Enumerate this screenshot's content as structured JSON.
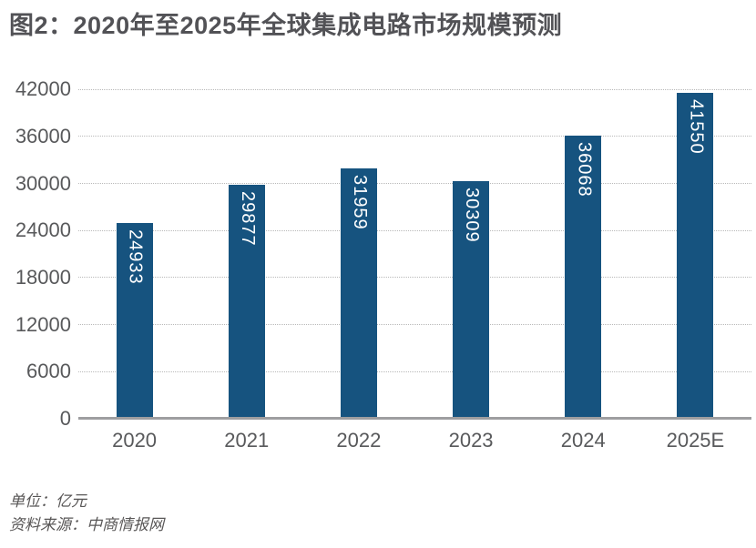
{
  "title": "图2：2020年至2025年全球集成电路市场规模预测",
  "chart_data": {
    "type": "bar",
    "title": "图2：2020年至2025年全球集成电路市场规模预测",
    "categories": [
      "2020",
      "2021",
      "2022",
      "2023",
      "2024",
      "2025E"
    ],
    "values": [
      24933,
      29877,
      31959,
      30309,
      36068,
      41550
    ],
    "xlabel": "",
    "ylabel": "",
    "ylim": [
      0,
      42000
    ],
    "yticks": [
      0,
      6000,
      12000,
      18000,
      24000,
      30000,
      36000,
      42000
    ],
    "grid": "horizontal-dotted",
    "legend": "none",
    "bar_color": "#16537F",
    "value_label_color": "#FFFFFF",
    "value_label_orientation": "vertical"
  },
  "footer": {
    "unit": "单位：亿元",
    "source": "资料来源：中商情报网"
  },
  "colors": {
    "title_text": "#525256",
    "axis_text": "#58595B",
    "axis_line": "#9E9EA0",
    "gridline": "#B9B9B9",
    "background": "#FFFFFF"
  }
}
